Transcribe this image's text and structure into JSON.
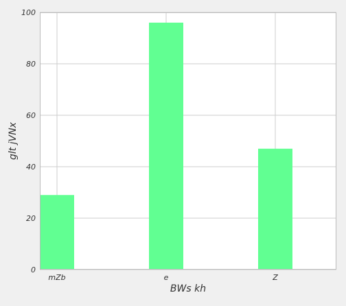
{
  "chart_data": {
    "type": "bar",
    "categories": [
      "mZb",
      "e",
      "Z"
    ],
    "values": [
      29,
      96,
      47
    ],
    "xlabel": "BWs  kh",
    "ylabel": "glt jVNx",
    "ylim": [
      0,
      100
    ],
    "yticks": [
      0,
      20,
      40,
      60,
      80,
      100
    ],
    "grid": true,
    "bar_color": "#61ff92",
    "grid_color": "#cccccc",
    "plot_background": "#ffffff",
    "page_background": "#f0f0f0"
  }
}
